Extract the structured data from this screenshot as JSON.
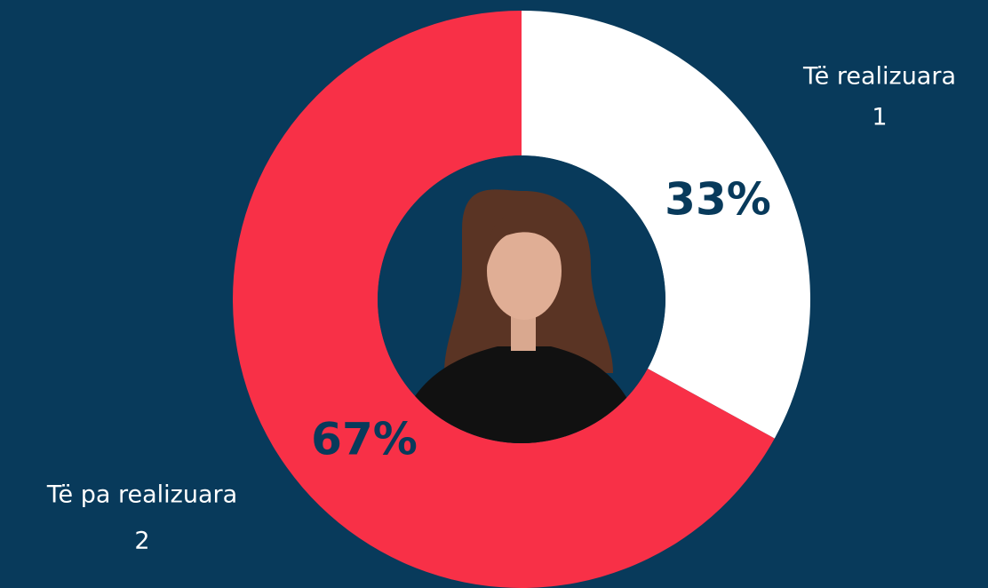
{
  "chart_data": {
    "type": "donut",
    "categories": [
      "Të realizuara",
      "Të pa realizuara"
    ],
    "values": [
      33,
      67
    ],
    "value_labels": [
      "33%",
      "67%"
    ],
    "counts": [
      1,
      2
    ],
    "colors": [
      "#ffffff",
      "#f83047"
    ]
  }
}
